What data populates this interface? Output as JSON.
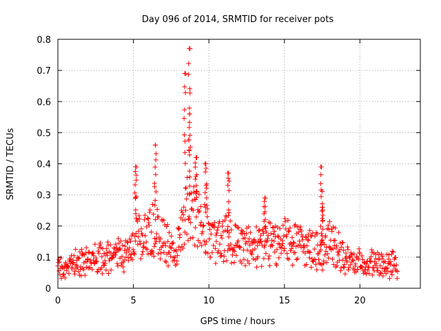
{
  "chart_data": {
    "type": "scatter",
    "title": "Day 096 of 2014, SRMTID for receiver pots",
    "xlabel": "GPS time / hours",
    "ylabel": "SRMTID / TECUs",
    "xlim": [
      0,
      24
    ],
    "ylim": [
      0,
      0.8
    ],
    "xticks": [
      0,
      5,
      10,
      15,
      20
    ],
    "xtick_labels": [
      "0",
      "5",
      "10",
      "15",
      "20"
    ],
    "yticks": [
      0,
      0.1,
      0.2,
      0.3,
      0.4,
      0.5,
      0.6,
      0.7,
      0.8
    ],
    "ytick_labels": [
      "0",
      "0.1",
      "0.2",
      "0.3",
      "0.4",
      "0.5",
      "0.6",
      "0.7",
      "0.8"
    ],
    "grid": true,
    "marker": "+",
    "color": "#ff0000",
    "series": [
      {
        "name": "SRMTID",
        "profile": {
          "hours": [
            0,
            0.3,
            1,
            2,
            3,
            4,
            4.8,
            5.2,
            5.8,
            6.3,
            6.8,
            7.3,
            7.8,
            8.2,
            8.6,
            9.0,
            9.5,
            10,
            10.5,
            11,
            11.5,
            12,
            12.5,
            13,
            13.5,
            14,
            14.5,
            15,
            15.5,
            16,
            16.5,
            17,
            17.5,
            18,
            18.5,
            19,
            19.5,
            20,
            20.5,
            21,
            21.5,
            22,
            22.5
          ],
          "typical_tecu": [
            0.08,
            0.05,
            0.08,
            0.09,
            0.1,
            0.11,
            0.12,
            0.2,
            0.16,
            0.18,
            0.17,
            0.14,
            0.1,
            0.2,
            0.25,
            0.24,
            0.2,
            0.17,
            0.15,
            0.18,
            0.15,
            0.14,
            0.14,
            0.13,
            0.14,
            0.15,
            0.14,
            0.16,
            0.15,
            0.14,
            0.13,
            0.13,
            0.12,
            0.15,
            0.12,
            0.09,
            0.08,
            0.08,
            0.08,
            0.08,
            0.07,
            0.08,
            0.07
          ]
        },
        "peaks": [
          {
            "hour": 5.15,
            "tecu": 0.39
          },
          {
            "hour": 6.45,
            "tecu": 0.46
          },
          {
            "hour": 8.4,
            "tecu": 0.69
          },
          {
            "hour": 8.7,
            "tecu": 0.77
          },
          {
            "hour": 8.72,
            "tecu": 0.56
          },
          {
            "hour": 9.15,
            "tecu": 0.42
          },
          {
            "hour": 9.8,
            "tecu": 0.4
          },
          {
            "hour": 11.3,
            "tecu": 0.37
          },
          {
            "hour": 13.7,
            "tecu": 0.29
          },
          {
            "hour": 17.45,
            "tecu": 0.39
          },
          {
            "hour": 17.5,
            "tecu": 0.26
          }
        ]
      }
    ]
  }
}
